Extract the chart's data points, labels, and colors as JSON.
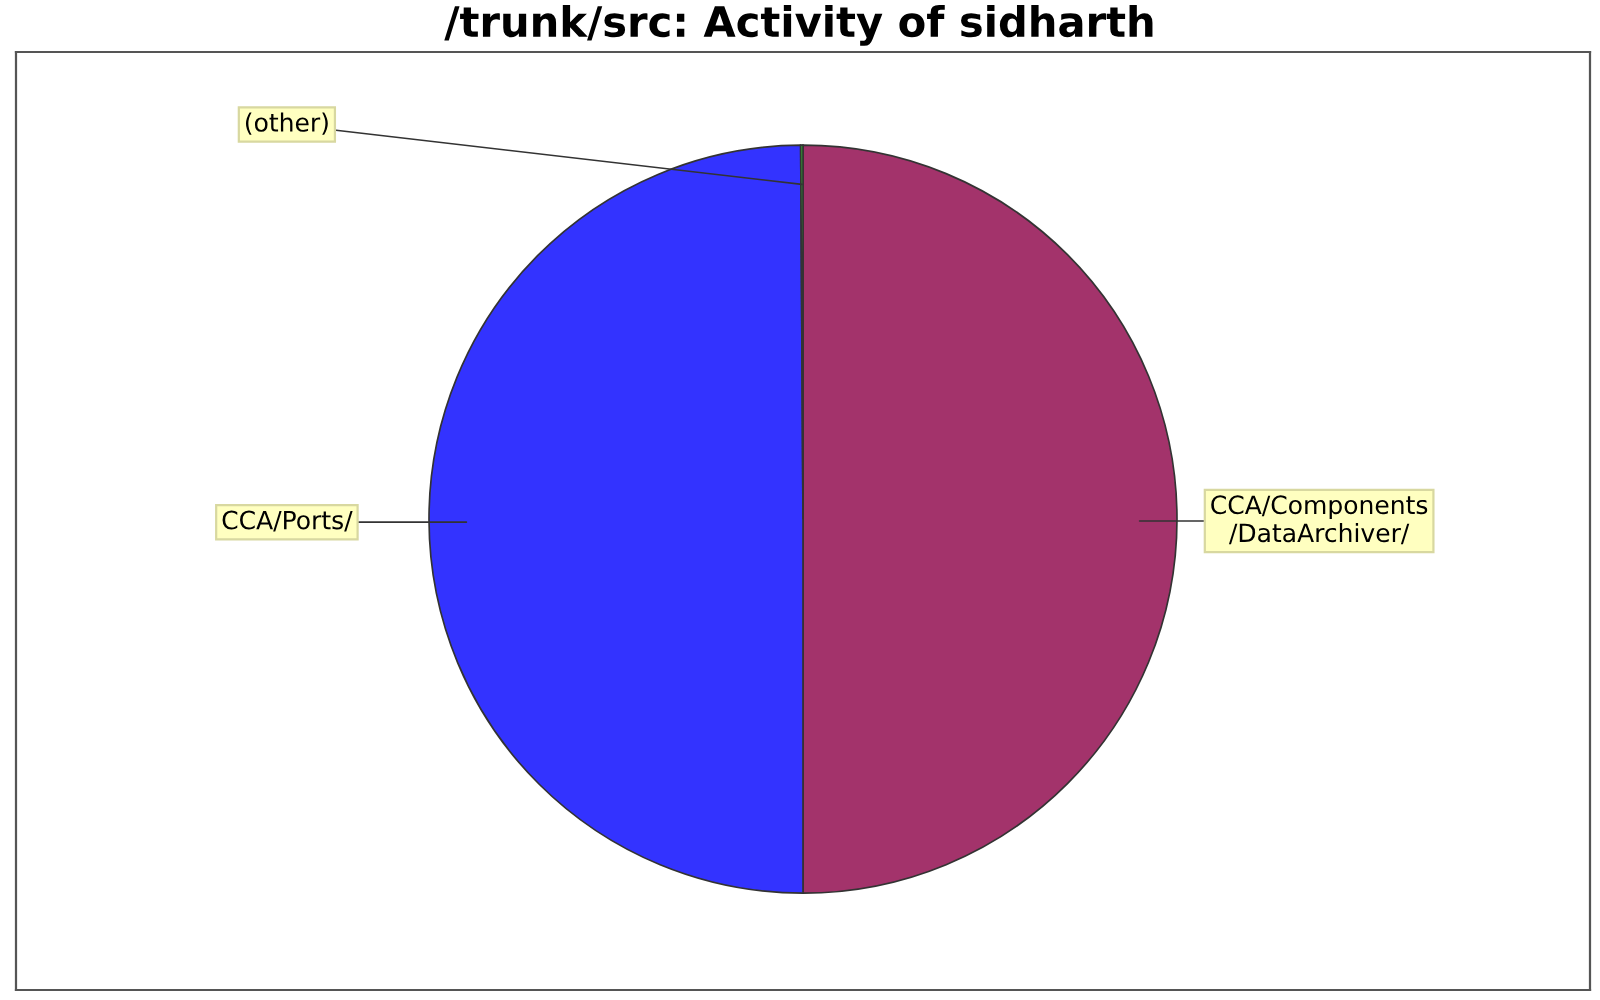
{
  "chart_data": {
    "type": "pie",
    "title": "/trunk/src: Activity of sidharth",
    "categories": [
      "CCA/Components\n/DataArchiver/",
      "CCA/Ports/",
      "(other)"
    ],
    "values": [
      50,
      49.9,
      0.1
    ],
    "colors": [
      "#a3336b",
      "#3333ff",
      "#33cc33"
    ]
  }
}
